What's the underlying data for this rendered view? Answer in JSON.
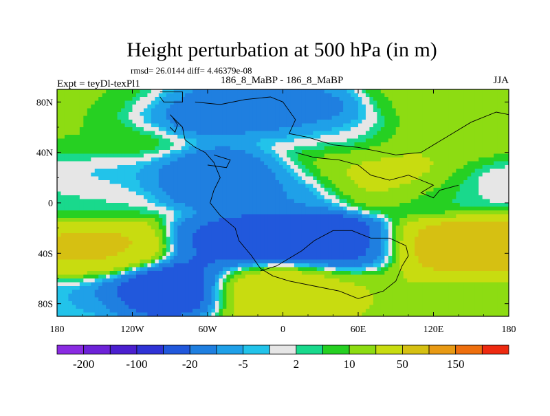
{
  "chart_data": {
    "type": "heatmap",
    "title": "Height perturbation at 500 hPa (in m)",
    "stats_line": "rmsd= 26.0144 diff= 4.46379e-08",
    "left_label": "Expt = teyDl-texPl1",
    "center_label": "186_8_MaBP - 186_8_MaBP",
    "right_label": "JJA",
    "xlim": [
      -180,
      180
    ],
    "ylim": [
      -90,
      90
    ],
    "x_ticks": [
      {
        "value": -180,
        "label": "180"
      },
      {
        "value": -120,
        "label": "120W"
      },
      {
        "value": -60,
        "label": "60W"
      },
      {
        "value": 0,
        "label": "0"
      },
      {
        "value": 60,
        "label": "60E"
      },
      {
        "value": 120,
        "label": "120E"
      },
      {
        "value": 180,
        "label": "180"
      }
    ],
    "y_ticks": [
      {
        "value": 80,
        "label": "80N"
      },
      {
        "value": 40,
        "label": "40N"
      },
      {
        "value": 0,
        "label": "0"
      },
      {
        "value": -40,
        "label": "40S"
      },
      {
        "value": -80,
        "label": "80S"
      }
    ],
    "colorbar": {
      "levels": [
        -300,
        -200,
        -150,
        -100,
        -50,
        -20,
        -10,
        -5,
        -2,
        2,
        5,
        10,
        20,
        50,
        100,
        150,
        200,
        300
      ],
      "labels": [
        {
          "value": -200,
          "label": "-200"
        },
        {
          "value": -100,
          "label": "-100"
        },
        {
          "value": -20,
          "label": "-20"
        },
        {
          "value": -5,
          "label": "-5"
        },
        {
          "value": 2,
          "label": "2"
        },
        {
          "value": 10,
          "label": "10"
        },
        {
          "value": 50,
          "label": "50"
        },
        {
          "value": 150,
          "label": "150"
        }
      ],
      "colors": [
        "#8a2be2",
        "#6d22d8",
        "#4b1fcf",
        "#2f33d6",
        "#2158dc",
        "#1f7fe0",
        "#1fa0e8",
        "#22c3ea",
        "#e6e6e6",
        "#19d98c",
        "#26d022",
        "#8ddc12",
        "#c8dc10",
        "#d6c012",
        "#e89a14",
        "#ee6f0e",
        "#ee2a10"
      ]
    },
    "base_value": 15,
    "field_features": [
      {
        "lon": -80,
        "lat": 74,
        "value": -20
      },
      {
        "lon": 10,
        "lat": 72,
        "value": -15
      },
      {
        "lon": -130,
        "lat": 82,
        "value": 12
      },
      {
        "lon": 130,
        "lat": 82,
        "value": 12
      },
      {
        "lon": -140,
        "lat": 50,
        "value": 10
      },
      {
        "lon": 160,
        "lat": 50,
        "value": 12
      },
      {
        "lon": 50,
        "lat": 48,
        "value": -3
      },
      {
        "lon": 120,
        "lat": 45,
        "value": 20
      },
      {
        "lon": 90,
        "lat": 22,
        "value": 35
      },
      {
        "lon": 50,
        "lat": 28,
        "value": 22
      },
      {
        "lon": -60,
        "lat": 20,
        "value": -20
      },
      {
        "lon": -20,
        "lat": 18,
        "value": -15
      },
      {
        "lon": -140,
        "lat": 22,
        "value": -5
      },
      {
        "lon": -160,
        "lat": 5,
        "value": 3
      },
      {
        "lon": 120,
        "lat": 8,
        "value": 3
      },
      {
        "lon": 0,
        "lat": 10,
        "value": -10
      },
      {
        "lon": 170,
        "lat": 20,
        "value": -3
      },
      {
        "lon": 10,
        "lat": -30,
        "value": -50
      },
      {
        "lon": -40,
        "lat": -35,
        "value": -25
      },
      {
        "lon": 60,
        "lat": -38,
        "value": -25
      },
      {
        "lon": -150,
        "lat": -40,
        "value": 60
      },
      {
        "lon": 140,
        "lat": -38,
        "value": 100
      },
      {
        "lon": -100,
        "lat": -65,
        "value": -40
      },
      {
        "lon": 0,
        "lat": -65,
        "value": 40
      },
      {
        "lon": 80,
        "lat": -70,
        "value": 20
      },
      {
        "lon": 150,
        "lat": -70,
        "value": 12
      },
      {
        "lon": -170,
        "lat": -72,
        "value": -5
      }
    ],
    "boundaries": [
      [
        [
          -70,
          80
        ],
        [
          -50,
          78
        ],
        [
          -30,
          82
        ],
        [
          -10,
          84
        ],
        [
          0,
          80
        ],
        [
          10,
          66
        ],
        [
          5,
          55
        ],
        [
          20,
          52
        ],
        [
          40,
          46
        ],
        [
          60,
          44
        ],
        [
          90,
          38
        ],
        [
          110,
          40
        ],
        [
          130,
          52
        ],
        [
          150,
          64
        ],
        [
          170,
          72
        ],
        [
          180,
          70
        ]
      ],
      [
        [
          -90,
          70
        ],
        [
          -80,
          60
        ],
        [
          -78,
          50
        ],
        [
          -70,
          44
        ],
        [
          -62,
          40
        ],
        [
          -55,
          32
        ],
        [
          -50,
          20
        ],
        [
          -55,
          10
        ],
        [
          -58,
          0
        ],
        [
          -50,
          -10
        ],
        [
          -38,
          -20
        ],
        [
          -35,
          -30
        ],
        [
          -25,
          -42
        ],
        [
          -18,
          -52
        ],
        [
          -8,
          -58
        ],
        [
          5,
          -62
        ],
        [
          25,
          -66
        ],
        [
          45,
          -70
        ],
        [
          60,
          -76
        ],
        [
          80,
          -70
        ],
        [
          90,
          -62
        ],
        [
          95,
          -50
        ],
        [
          100,
          -42
        ],
        [
          98,
          -34
        ],
        [
          85,
          -28
        ],
        [
          70,
          -28
        ],
        [
          55,
          -22
        ],
        [
          40,
          -22
        ],
        [
          25,
          -30
        ],
        [
          15,
          -38
        ],
        [
          5,
          -44
        ],
        [
          -5,
          -50
        ],
        [
          -18,
          -54
        ]
      ],
      [
        [
          10,
          40
        ],
        [
          25,
          36
        ],
        [
          45,
          34
        ],
        [
          60,
          30
        ],
        [
          70,
          22
        ],
        [
          85,
          18
        ],
        [
          100,
          22
        ],
        [
          110,
          18
        ],
        [
          120,
          14
        ],
        [
          110,
          8
        ],
        [
          120,
          4
        ],
        [
          125,
          10
        ],
        [
          140,
          14
        ]
      ],
      [
        [
          -98,
          88
        ],
        [
          -80,
          88
        ],
        [
          -80,
          80
        ],
        [
          -95,
          80
        ],
        [
          -98,
          84
        ]
      ],
      [
        [
          -88,
          68
        ],
        [
          -84,
          62
        ],
        [
          -86,
          56
        ],
        [
          -90,
          60
        ]
      ],
      [
        [
          -60,
          30
        ],
        [
          -45,
          28
        ],
        [
          -42,
          34
        ],
        [
          -55,
          38
        ]
      ]
    ]
  }
}
